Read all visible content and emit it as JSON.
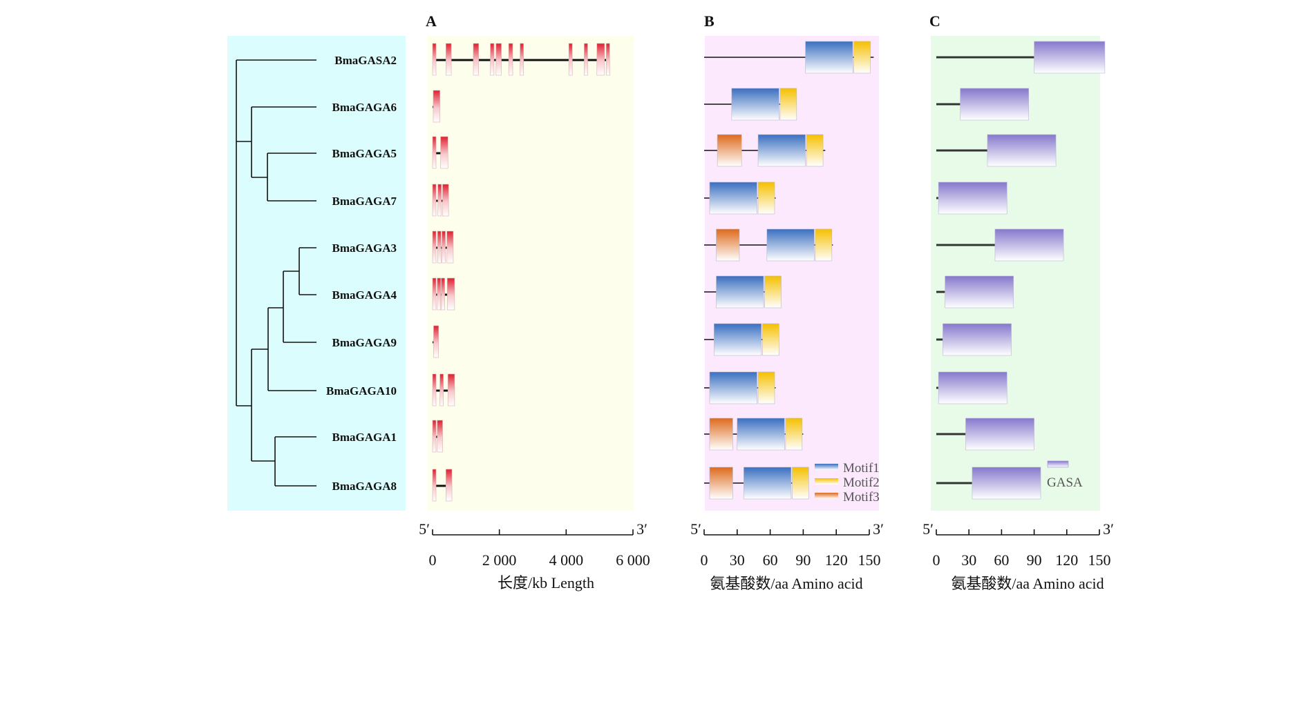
{
  "panels": {
    "A": {
      "letter": "A",
      "axis_label": "长度/kb Length",
      "end5": "5′",
      "end3": "3′",
      "ticks": [
        {
          "v": 0,
          "label": "0"
        },
        {
          "v": 2000,
          "label": "2 000"
        },
        {
          "v": 4000,
          "label": "4 000"
        },
        {
          "v": 6000,
          "label": "6 000"
        }
      ],
      "bg": "#fdfeeb",
      "exon_color": "#e03131"
    },
    "B": {
      "letter": "B",
      "axis_label": "氨基酸数/aa Amino acid",
      "end5": "5′",
      "end3": "3′",
      "ticks": [
        {
          "v": 0,
          "label": "0"
        },
        {
          "v": 30,
          "label": "30"
        },
        {
          "v": 60,
          "label": "60"
        },
        {
          "v": 90,
          "label": "90"
        },
        {
          "v": 120,
          "label": "120"
        },
        {
          "v": 150,
          "label": "150"
        }
      ],
      "bg": "#fde9fd",
      "legend": [
        {
          "label": "Motif1",
          "color": "#3a73c4"
        },
        {
          "label": "Motif2",
          "color": "#f7c400"
        },
        {
          "label": "Motif3",
          "color": "#e07020"
        }
      ]
    },
    "C": {
      "letter": "C",
      "axis_label": "氨基酸数/aa Amino acid",
      "end5": "5′",
      "end3": "3′",
      "ticks": [
        {
          "v": 0,
          "label": "0"
        },
        {
          "v": 30,
          "label": "30"
        },
        {
          "v": 60,
          "label": "60"
        },
        {
          "v": 90,
          "label": "90"
        },
        {
          "v": 120,
          "label": "120"
        },
        {
          "v": 150,
          "label": "150"
        }
      ],
      "bg": "#e8fbe8",
      "legend": [
        {
          "label": "GASA",
          "color": "#8a7fd0"
        }
      ]
    }
  },
  "tree_bg": "#dcfdfd",
  "genes": [
    {
      "name": "BmaGASA2",
      "gene_len": 5250,
      "exons": [
        [
          0,
          100
        ],
        [
          400,
          560
        ],
        [
          1220,
          1380
        ],
        [
          1730,
          1840
        ],
        [
          1900,
          2060
        ],
        [
          2280,
          2400
        ],
        [
          2620,
          2680
        ],
        [
          4080,
          4160
        ],
        [
          4540,
          4580
        ],
        [
          4920,
          5150
        ],
        [
          5200,
          5250
        ]
      ],
      "protein_len": 154,
      "motifs": [
        {
          "m": 1,
          "s": 92,
          "e": 135
        },
        {
          "m": 2,
          "s": 136,
          "e": 151
        }
      ],
      "gasa": [
        90,
        155
      ]
    },
    {
      "name": "BmaGAGA6",
      "gene_len": 220,
      "exons": [
        [
          20,
          220
        ]
      ],
      "protein_len": 84,
      "motifs": [
        {
          "m": 1,
          "s": 25,
          "e": 68
        },
        {
          "m": 2,
          "s": 69,
          "e": 84
        }
      ],
      "gasa": [
        22,
        85
      ]
    },
    {
      "name": "BmaGAGA5",
      "gene_len": 460,
      "exons": [
        [
          0,
          80
        ],
        [
          240,
          460
        ]
      ],
      "protein_len": 110,
      "motifs": [
        {
          "m": 3,
          "s": 12,
          "e": 34
        },
        {
          "m": 1,
          "s": 49,
          "e": 92
        },
        {
          "m": 2,
          "s": 93,
          "e": 108
        }
      ],
      "gasa": [
        47,
        110
      ]
    },
    {
      "name": "BmaGAGA7",
      "gene_len": 480,
      "exons": [
        [
          0,
          60
        ],
        [
          160,
          230
        ],
        [
          300,
          480
        ]
      ],
      "protein_len": 65,
      "motifs": [
        {
          "m": 1,
          "s": 5,
          "e": 48
        },
        {
          "m": 2,
          "s": 49,
          "e": 64
        }
      ],
      "gasa": [
        2,
        65
      ]
    },
    {
      "name": "BmaGAGA3",
      "gene_len": 620,
      "exons": [
        [
          0,
          60
        ],
        [
          150,
          210
        ],
        [
          280,
          330
        ],
        [
          430,
          620
        ]
      ],
      "protein_len": 117,
      "motifs": [
        {
          "m": 3,
          "s": 11,
          "e": 32
        },
        {
          "m": 1,
          "s": 57,
          "e": 100
        },
        {
          "m": 2,
          "s": 101,
          "e": 116
        }
      ],
      "gasa": [
        54,
        117
      ]
    },
    {
      "name": "BmaGAGA4",
      "gene_len": 660,
      "exons": [
        [
          0,
          60
        ],
        [
          140,
          200
        ],
        [
          260,
          320
        ],
        [
          440,
          660
        ]
      ],
      "protein_len": 70,
      "motifs": [
        {
          "m": 1,
          "s": 11,
          "e": 54
        },
        {
          "m": 2,
          "s": 55,
          "e": 70
        }
      ],
      "gasa": [
        8,
        71
      ]
    },
    {
      "name": "BmaGAGA9",
      "gene_len": 180,
      "exons": [
        [
          30,
          180
        ]
      ],
      "protein_len": 68,
      "motifs": [
        {
          "m": 1,
          "s": 9,
          "e": 52
        },
        {
          "m": 2,
          "s": 53,
          "e": 68
        }
      ],
      "gasa": [
        6,
        69
      ]
    },
    {
      "name": "BmaGAGA10",
      "gene_len": 660,
      "exons": [
        [
          0,
          60
        ],
        [
          220,
          280
        ],
        [
          460,
          660
        ]
      ],
      "protein_len": 65,
      "motifs": [
        {
          "m": 1,
          "s": 5,
          "e": 48
        },
        {
          "m": 2,
          "s": 49,
          "e": 64
        }
      ],
      "gasa": [
        2,
        65
      ]
    },
    {
      "name": "BmaGAGA1",
      "gene_len": 300,
      "exons": [
        [
          0,
          60
        ],
        [
          140,
          300
        ]
      ],
      "protein_len": 90,
      "motifs": [
        {
          "m": 3,
          "s": 5,
          "e": 26
        },
        {
          "m": 1,
          "s": 30,
          "e": 73
        },
        {
          "m": 2,
          "s": 74,
          "e": 89
        }
      ],
      "gasa": [
        27,
        90
      ]
    },
    {
      "name": "BmaGAGA8",
      "gene_len": 580,
      "exons": [
        [
          0,
          60
        ],
        [
          400,
          580
        ]
      ],
      "protein_len": 95,
      "motifs": [
        {
          "m": 3,
          "s": 5,
          "e": 26
        },
        {
          "m": 1,
          "s": 36,
          "e": 79
        },
        {
          "m": 2,
          "s": 80,
          "e": 95
        }
      ],
      "gasa": [
        33,
        96
      ]
    }
  ]
}
